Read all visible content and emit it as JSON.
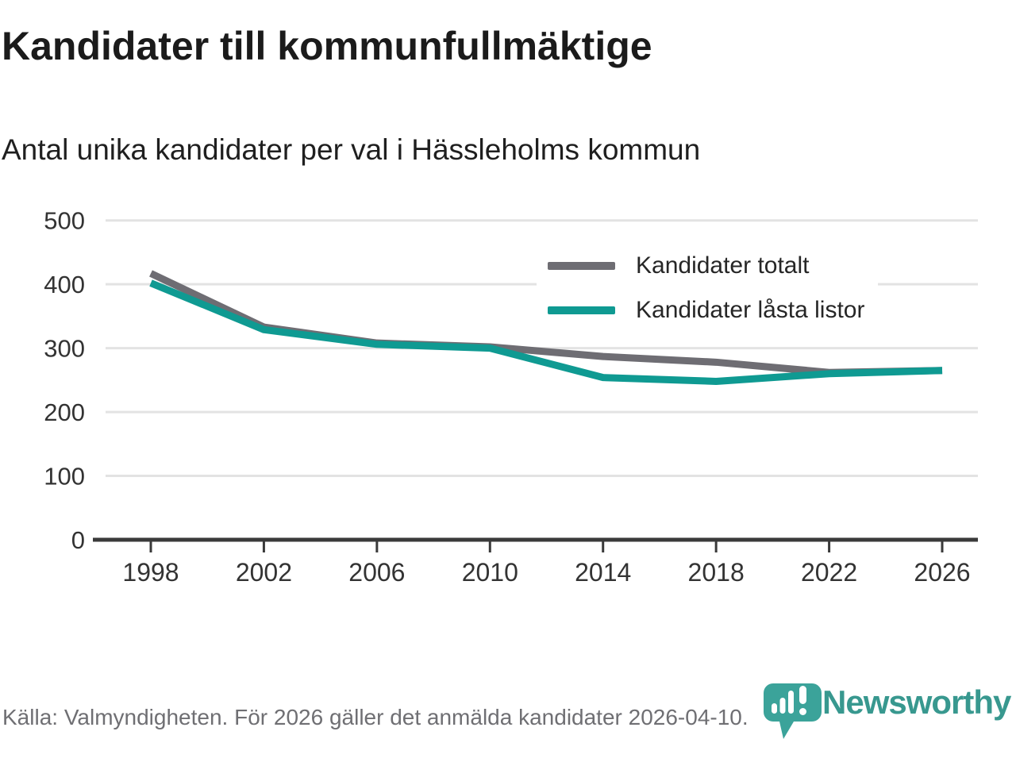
{
  "header": {
    "title": "Kandidater till kommunfullmäktige",
    "subtitle": "Antal unika kandidater per val i Hässleholms kommun"
  },
  "chart_data": {
    "type": "line",
    "x": [
      1998,
      2002,
      2006,
      2010,
      2014,
      2018,
      2022,
      2026
    ],
    "series": [
      {
        "name": "Kandidater totalt",
        "color": "#6e6d73",
        "values": [
          417,
          333,
          308,
          302,
          287,
          278,
          262,
          265
        ]
      },
      {
        "name": "Kandidater låsta listor",
        "color": "#0f9a92",
        "values": [
          402,
          329,
          306,
          300,
          254,
          248,
          260,
          265
        ]
      }
    ],
    "ylim": [
      0,
      500
    ],
    "yticks": [
      0,
      100,
      200,
      300,
      400,
      500
    ],
    "xlabel": "",
    "ylabel": "",
    "grid": "horizontal",
    "gridline_color": "#e3e3e3",
    "axis_color": "#3a3a3a",
    "legend_position": "top-right"
  },
  "footer": {
    "source": "Källa: Valmyndigheten. För 2026 gäller det anmälda kandidater 2026-04-10.",
    "brand": "Newsworthy",
    "brand_color": "#38988f",
    "brand_icon_color": "#3ba39a"
  }
}
